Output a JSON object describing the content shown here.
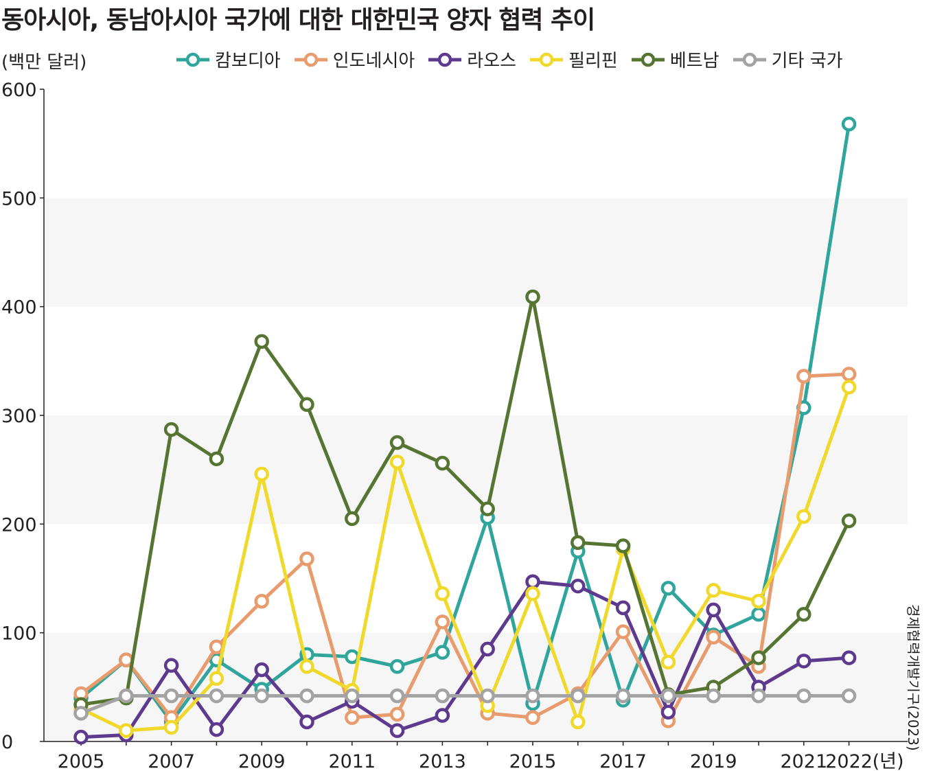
{
  "title": "동아시아, 동남아시아 국가에 대한 대한민국 양자 협력 추이",
  "unit_label": "(백만 달러)",
  "source": "경제협력개발기구(2023)",
  "chart_data": {
    "type": "line",
    "title": "동아시아, 동남아시아 국가에 대한 대한민국 양자 협력 추이",
    "ylabel": "(백만 달러)",
    "xlabel": "(년)",
    "ylim": [
      0,
      600
    ],
    "yticks": [
      "0",
      "100",
      "200",
      "300",
      "400",
      "500",
      "600"
    ],
    "xtick_labels": [
      "2005",
      "2007",
      "2009",
      "2011",
      "2013",
      "2015",
      "2017",
      "2019",
      "2021",
      "2022"
    ],
    "x": [
      2005,
      2006,
      2007,
      2008,
      2009,
      2010,
      2011,
      2012,
      2013,
      2014,
      2015,
      2016,
      2017,
      2018,
      2019,
      2020,
      2021,
      2022
    ],
    "grid": "alternating horizontal bands",
    "legend_position": "top",
    "series": [
      {
        "name": "캄보디아",
        "color": "#2fa59b",
        "values": [
          40,
          75,
          18,
          75,
          48,
          80,
          78,
          69,
          82,
          206,
          35,
          175,
          38,
          141,
          98,
          117,
          307,
          568
        ]
      },
      {
        "name": "인도네시아",
        "color": "#e89c6e",
        "values": [
          44,
          75,
          22,
          87,
          129,
          168,
          22,
          25,
          110,
          26,
          22,
          44,
          101,
          19,
          96,
          69,
          336,
          338
        ]
      },
      {
        "name": "라오스",
        "color": "#5e3a8f",
        "values": [
          4,
          6,
          70,
          11,
          66,
          18,
          37,
          10,
          24,
          85,
          147,
          143,
          123,
          27,
          121,
          50,
          74,
          77
        ]
      },
      {
        "name": "필리핀",
        "color": "#f0d92a",
        "values": [
          30,
          10,
          13,
          58,
          246,
          69,
          47,
          257,
          136,
          33,
          136,
          18,
          177,
          73,
          139,
          129,
          207,
          326
        ]
      },
      {
        "name": "베트남",
        "color": "#567532",
        "values": [
          34,
          40,
          287,
          260,
          368,
          310,
          205,
          275,
          256,
          214,
          409,
          183,
          180,
          43,
          50,
          77,
          117,
          203
        ]
      },
      {
        "name": "기타 국가",
        "color": "#a3a3a3",
        "values": [
          26,
          42,
          42,
          42,
          42,
          42,
          42,
          42,
          42,
          42,
          42,
          42,
          42,
          42,
          42,
          42,
          42,
          42
        ]
      }
    ]
  }
}
